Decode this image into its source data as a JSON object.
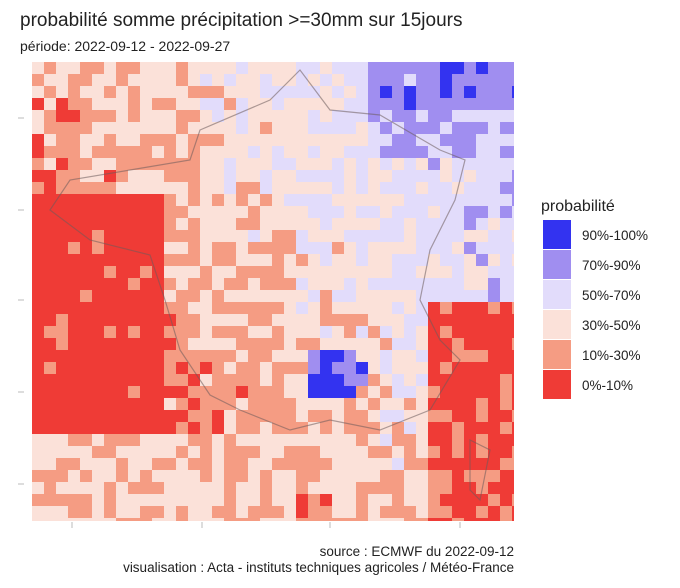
{
  "title": "probabilité somme précipitation >=30mm sur 15jours",
  "subtitle": "période: 2022-09-12 - 2022-09-27",
  "legend": {
    "title": "probabilité",
    "items": [
      {
        "label": "90%-100%",
        "color": "#3333f0"
      },
      {
        "label": "70%-90%",
        "color": "#a08ef0"
      },
      {
        "label": "50%-70%",
        "color": "#e2dcfb"
      },
      {
        "label": "30%-50%",
        "color": "#fbe1d9"
      },
      {
        "label": "10%-30%",
        "color": "#f59c83"
      },
      {
        "label": "0%-10%",
        "color": "#ef3b36"
      }
    ]
  },
  "source": "source : ECMWF du 2022-09-12",
  "credit": "visualisation : Acta - instituts techniques agricoles / Météo-France"
}
